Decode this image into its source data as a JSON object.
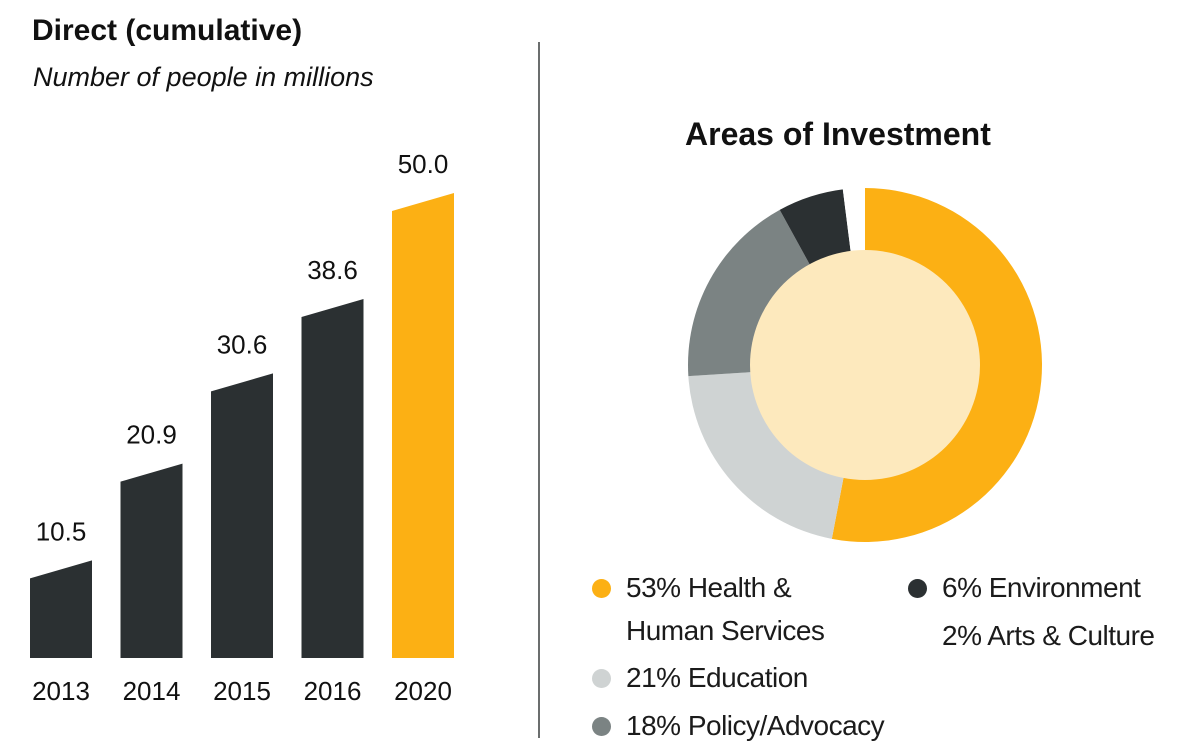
{
  "chart_data": [
    {
      "type": "bar",
      "title": "Direct (cumulative)",
      "subtitle": "Number of people in millions",
      "categories": [
        "2013",
        "2014",
        "2015",
        "2016",
        "2020"
      ],
      "values": [
        10.5,
        20.9,
        30.6,
        38.6,
        50.0
      ],
      "value_labels": [
        "10.5",
        "20.9",
        "30.6",
        "38.6",
        "50.0"
      ],
      "colors": [
        "#2b3032",
        "#2b3032",
        "#2b3032",
        "#2b3032",
        "#fcb014"
      ],
      "grid": false
    },
    {
      "type": "pie",
      "title": "Areas of Investment",
      "slices": [
        {
          "label": "53% Health & Human Services",
          "line1": "53% Health &",
          "line2": "Human Services",
          "value": 53,
          "color": "#fcb014"
        },
        {
          "label": "21% Education",
          "value": 21,
          "color": "#cfd3d3"
        },
        {
          "label": "18% Policy/Advocacy",
          "value": 18,
          "color": "#7b8383"
        },
        {
          "label": "6% Environment",
          "value": 6,
          "color": "#2b3032"
        },
        {
          "label": "2% Arts & Culture",
          "value": 2,
          "color": "#ffffff"
        }
      ],
      "center_color": "#fde9bd",
      "legend_placement": "bottom"
    }
  ]
}
